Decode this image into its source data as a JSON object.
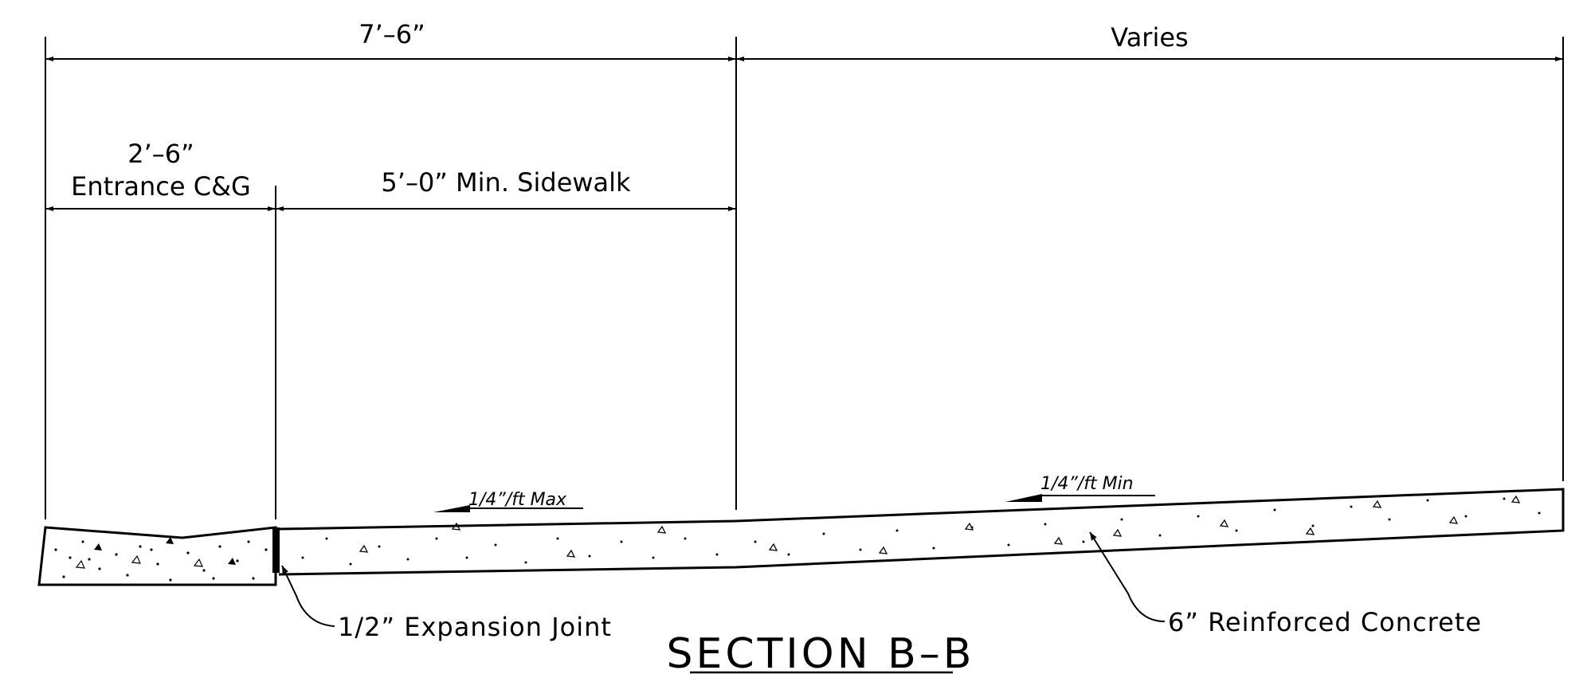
{
  "dimensions": {
    "overall": "7’–6”",
    "varies": "Varies",
    "curb_gutter_size": "2’–6”",
    "curb_gutter_label": "Entrance C&G",
    "sidewalk": "5’–0” Min. Sidewalk"
  },
  "slopes": {
    "sidewalk_slope": "1/4”/ft Max",
    "apron_slope": "1/4”/ft Min"
  },
  "callouts": {
    "expansion_joint": "1/2” Expansion Joint",
    "concrete": "6” Reinforced Concrete"
  },
  "title": "SECTION B–B"
}
